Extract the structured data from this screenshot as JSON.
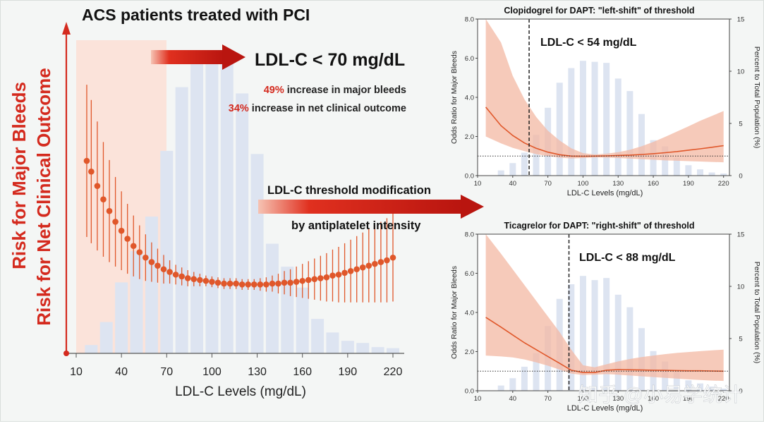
{
  "main_panel": {
    "title": "ACS patients treated with PCI",
    "y_label_1": "Risk for Major Bleeds",
    "y_label_2": "Risk for Net Clinical Outcome",
    "x_label": "LDL-C Levels (mg/dL)",
    "threshold_text": "LDL-C < 70 mg/dL",
    "stat1_pct": "49%",
    "stat1_text": " increase in major bleeds",
    "stat2_pct": "34%",
    "stat2_text": " increase in net clinical outcome",
    "modification_line1": "LDL-C threshold modification",
    "modification_line2": "by antiplatelet intensity"
  },
  "colors": {
    "accent_red": "#d42a1e",
    "curve": "#e0572a",
    "band": "#f3b8a3",
    "bars": "#dde4f1",
    "shade": "#fbe3da"
  },
  "watermark": "知乎 @小易学统计",
  "chart_data": [
    {
      "type": "bar",
      "title": "ACS patients treated with PCI",
      "xlabel": "LDL-C Levels (mg/dL)",
      "ylabel": "Risk for Major Bleeds / Risk for Net Clinical Outcome",
      "x_ticks": [
        10,
        40,
        70,
        100,
        130,
        160,
        190,
        220
      ],
      "x_range": [
        10,
        225
      ],
      "shaded_region": [
        10,
        70
      ],
      "threshold": 70,
      "bars": {
        "x": [
          20,
          30,
          40,
          50,
          60,
          70,
          80,
          90,
          100,
          110,
          120,
          130,
          140,
          150,
          160,
          170,
          180,
          190,
          200,
          210,
          220
        ],
        "values": [
          0.8,
          3.0,
          6.8,
          9.8,
          13.1,
          19.4,
          25.5,
          27.8,
          28.2,
          28.0,
          24.9,
          19.1,
          10.5,
          8.3,
          6.3,
          3.3,
          2.0,
          1.2,
          1.0,
          0.6,
          0.5
        ],
        "max": 30
      },
      "curve": {
        "x": [
          17,
          20,
          24,
          28,
          32,
          36,
          40,
          44,
          48,
          52,
          56,
          60,
          64,
          68,
          72,
          76,
          80,
          84,
          88,
          92,
          96,
          100,
          104,
          108,
          112,
          116,
          120,
          124,
          128,
          132,
          136,
          140,
          144,
          148,
          152,
          156,
          160,
          164,
          168,
          172,
          176,
          180,
          184,
          188,
          192,
          196,
          200,
          204,
          208,
          212,
          216,
          220
        ],
        "y": [
          2.33,
          2.21,
          2.05,
          1.9,
          1.77,
          1.65,
          1.55,
          1.46,
          1.38,
          1.31,
          1.25,
          1.2,
          1.16,
          1.12,
          1.09,
          1.06,
          1.04,
          1.02,
          1.01,
          1.0,
          0.99,
          0.98,
          0.97,
          0.96,
          0.96,
          0.96,
          0.95,
          0.95,
          0.95,
          0.95,
          0.95,
          0.96,
          0.96,
          0.97,
          0.97,
          0.98,
          0.99,
          1.0,
          1.01,
          1.02,
          1.03,
          1.05,
          1.06,
          1.08,
          1.1,
          1.12,
          1.14,
          1.16,
          1.18,
          1.2,
          1.22,
          1.25
        ],
        "ci_half": [
          0.85,
          0.8,
          0.72,
          0.64,
          0.57,
          0.5,
          0.44,
          0.39,
          0.34,
          0.3,
          0.26,
          0.22,
          0.19,
          0.16,
          0.13,
          0.11,
          0.1,
          0.09,
          0.08,
          0.07,
          0.06,
          0.06,
          0.06,
          0.06,
          0.06,
          0.06,
          0.06,
          0.06,
          0.06,
          0.07,
          0.08,
          0.09,
          0.11,
          0.13,
          0.15,
          0.17,
          0.19,
          0.21,
          0.23,
          0.25,
          0.27,
          0.29,
          0.31,
          0.33,
          0.35,
          0.37,
          0.39,
          0.41,
          0.43,
          0.45,
          0.47,
          0.49
        ],
        "y_range": [
          0.3,
          3.5
        ]
      }
    },
    {
      "type": "line",
      "title": "Clopidogrel for DAPT: \"left-shift\" of threshold",
      "threshold_label": "LDL-C < 54 mg/dL",
      "threshold": 54,
      "xlabel": "LDL-C Levels (mg/dL)",
      "ylabel": "Odds Ratio for Major Bleeds",
      "y2label": "Percent to Total Population (%)",
      "xlim": [
        10,
        225
      ],
      "ylim": [
        0,
        8
      ],
      "y2lim": [
        0,
        15
      ],
      "x_ticks": [
        10,
        40,
        70,
        100,
        130,
        160,
        190,
        220
      ],
      "y_ticks": [
        "0.0",
        "2.0",
        "4.0",
        "6.0",
        "8.0"
      ],
      "y2_ticks": [
        "0",
        "5",
        "10",
        "15"
      ],
      "reference_line": 1.0,
      "bars": {
        "x": [
          30,
          40,
          50,
          60,
          70,
          80,
          90,
          100,
          110,
          120,
          130,
          140,
          150,
          160,
          170,
          180,
          190,
          200,
          210,
          220
        ],
        "values": [
          0.5,
          1.2,
          2.2,
          3.9,
          6.5,
          8.9,
          10.3,
          11.0,
          10.9,
          10.8,
          9.3,
          8.1,
          5.9,
          3.4,
          2.8,
          1.7,
          1.0,
          0.6,
          0.3,
          0.2
        ]
      },
      "series": [
        {
          "x": [
            17,
            30,
            40,
            50,
            60,
            70,
            80,
            90,
            100,
            110,
            120,
            130,
            140,
            150,
            160,
            170,
            180,
            190,
            200,
            210,
            220
          ],
          "y": [
            3.5,
            2.55,
            2.05,
            1.67,
            1.4,
            1.2,
            1.07,
            1.0,
            0.99,
            1.0,
            1.01,
            1.03,
            1.05,
            1.08,
            1.12,
            1.17,
            1.23,
            1.3,
            1.37,
            1.45,
            1.53
          ],
          "lower": [
            2.0,
            1.65,
            1.42,
            1.25,
            1.1,
            1.0,
            0.92,
            0.88,
            0.9,
            0.93,
            0.92,
            0.9,
            0.87,
            0.84,
            0.81,
            0.78,
            0.76,
            0.74,
            0.72,
            0.7,
            0.68
          ],
          "upper": [
            8.0,
            6.8,
            5.1,
            3.9,
            3.0,
            2.3,
            1.8,
            1.4,
            1.15,
            1.08,
            1.12,
            1.2,
            1.32,
            1.5,
            1.72,
            1.98,
            2.25,
            2.52,
            2.8,
            3.05,
            3.3
          ]
        }
      ]
    },
    {
      "type": "line",
      "title": "Ticagrelor for DAPT:  \"right-shift\" of threshold",
      "threshold_label": "LDL-C < 88 mg/dL",
      "threshold": 88,
      "xlabel": "LDL-C Levels (mg/dL)",
      "ylabel": "Odds Ratio for Major Bleeds",
      "y2label": "Percent to Total Population (%)",
      "xlim": [
        10,
        225
      ],
      "ylim": [
        0,
        8
      ],
      "y2lim": [
        0,
        15
      ],
      "x_ticks": [
        10,
        40,
        70,
        100,
        130,
        160,
        190,
        220
      ],
      "y_ticks": [
        "0.0",
        "2.0",
        "4.0",
        "6.0",
        "8.0"
      ],
      "y2_ticks": [
        "0",
        "5",
        "10",
        "15"
      ],
      "reference_line": 1.0,
      "bars": {
        "x": [
          30,
          40,
          50,
          60,
          70,
          80,
          90,
          100,
          110,
          120,
          130,
          140,
          150,
          160,
          170,
          180,
          190,
          200,
          210,
          220
        ],
        "values": [
          0.5,
          1.2,
          2.3,
          3.6,
          6.2,
          8.8,
          10.2,
          11.0,
          10.6,
          10.8,
          9.2,
          8.0,
          6.0,
          3.8,
          2.8,
          1.8,
          1.0,
          0.7,
          0.4,
          0.2
        ]
      },
      "series": [
        {
          "x": [
            17,
            30,
            40,
            50,
            60,
            70,
            80,
            90,
            100,
            110,
            120,
            130,
            140,
            150,
            160,
            170,
            180,
            190,
            200,
            210,
            220
          ],
          "y": [
            3.75,
            3.25,
            2.85,
            2.45,
            2.1,
            1.75,
            1.4,
            1.05,
            0.93,
            0.93,
            1.05,
            1.08,
            1.07,
            1.06,
            1.05,
            1.04,
            1.03,
            1.02,
            1.02,
            1.01,
            1.0
          ],
          "lower": [
            1.8,
            1.75,
            1.7,
            1.6,
            1.45,
            1.28,
            1.08,
            0.88,
            0.8,
            0.82,
            0.85,
            0.82,
            0.78,
            0.74,
            0.7,
            0.66,
            0.62,
            0.58,
            0.55,
            0.52,
            0.5
          ],
          "upper": [
            8.0,
            7.0,
            6.2,
            5.4,
            4.6,
            3.8,
            3.0,
            2.1,
            1.3,
            1.2,
            1.35,
            1.5,
            1.62,
            1.72,
            1.8,
            1.87,
            1.93,
            1.98,
            2.02,
            2.06,
            2.1
          ]
        }
      ]
    }
  ]
}
